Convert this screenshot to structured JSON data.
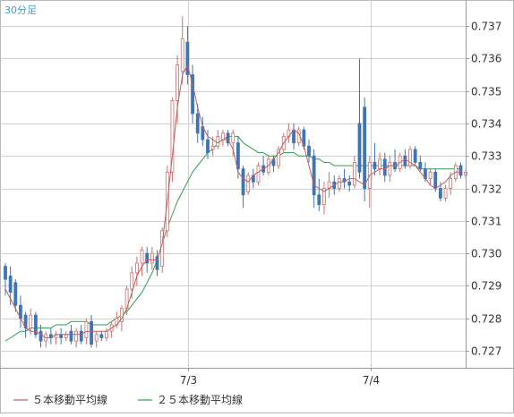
{
  "chart_data": {
    "type": "candlestick",
    "timeframe_label": "30分足",
    "ylim": [
      0.7265,
      0.7375
    ],
    "y_ticks": [
      "0.727",
      "0.728",
      "0.729",
      "0.730",
      "0.731",
      "0.732",
      "0.733",
      "0.734",
      "0.735",
      "0.736",
      "0.737"
    ],
    "x_tick_labels": [
      "7/3",
      "7/4"
    ],
    "grid": true,
    "legend_position": "bottom",
    "colors": {
      "up": "#cc6f6f",
      "down": "#3f74b5",
      "ma5": "#c25d5d",
      "ma25": "#2e9e52",
      "grid": "#cfcfcf",
      "label_blue": "#3aa0d8"
    },
    "legend": [
      {
        "label": "５本移動平均線",
        "color": "#c25d5d"
      },
      {
        "label": "２５本移動平均線",
        "color": "#2e9e52"
      }
    ],
    "candles": [
      {
        "o": 0.7296,
        "h": 0.7297,
        "l": 0.7287,
        "c": 0.7292
      },
      {
        "o": 0.7293,
        "h": 0.7296,
        "l": 0.7284,
        "c": 0.7288
      },
      {
        "o": 0.7291,
        "h": 0.7292,
        "l": 0.7282,
        "c": 0.7284
      },
      {
        "o": 0.7284,
        "h": 0.7287,
        "l": 0.7277,
        "c": 0.728
      },
      {
        "o": 0.7281,
        "h": 0.7282,
        "l": 0.7274,
        "c": 0.7277
      },
      {
        "o": 0.7277,
        "h": 0.7283,
        "l": 0.7275,
        "c": 0.7281
      },
      {
        "o": 0.7281,
        "h": 0.7282,
        "l": 0.7274,
        "c": 0.7275
      },
      {
        "o": 0.7276,
        "h": 0.7278,
        "l": 0.7271,
        "c": 0.7273
      },
      {
        "o": 0.7273,
        "h": 0.7276,
        "l": 0.7271,
        "c": 0.7275
      },
      {
        "o": 0.7275,
        "h": 0.7277,
        "l": 0.7272,
        "c": 0.7274
      },
      {
        "o": 0.7274,
        "h": 0.7276,
        "l": 0.7272,
        "c": 0.7275
      },
      {
        "o": 0.7275,
        "h": 0.7277,
        "l": 0.7272,
        "c": 0.7274
      },
      {
        "o": 0.7274,
        "h": 0.7276,
        "l": 0.7273,
        "c": 0.7275
      },
      {
        "o": 0.7276,
        "h": 0.7278,
        "l": 0.7272,
        "c": 0.7273
      },
      {
        "o": 0.7273,
        "h": 0.7277,
        "l": 0.7271,
        "c": 0.7276
      },
      {
        "o": 0.7276,
        "h": 0.7278,
        "l": 0.7272,
        "c": 0.7273
      },
      {
        "o": 0.7274,
        "h": 0.728,
        "l": 0.7272,
        "c": 0.7279
      },
      {
        "o": 0.7279,
        "h": 0.7281,
        "l": 0.7271,
        "c": 0.7272
      },
      {
        "o": 0.7273,
        "h": 0.7276,
        "l": 0.7271,
        "c": 0.7275
      },
      {
        "o": 0.7275,
        "h": 0.7276,
        "l": 0.7273,
        "c": 0.7274
      },
      {
        "o": 0.7274,
        "h": 0.7277,
        "l": 0.7273,
        "c": 0.7276
      },
      {
        "o": 0.7276,
        "h": 0.7279,
        "l": 0.7274,
        "c": 0.7278
      },
      {
        "o": 0.7278,
        "h": 0.7282,
        "l": 0.7277,
        "c": 0.728
      },
      {
        "o": 0.7279,
        "h": 0.7284,
        "l": 0.7276,
        "c": 0.7283
      },
      {
        "o": 0.7283,
        "h": 0.729,
        "l": 0.7281,
        "c": 0.7289
      },
      {
        "o": 0.7289,
        "h": 0.7296,
        "l": 0.7286,
        "c": 0.7294
      },
      {
        "o": 0.7294,
        "h": 0.7299,
        "l": 0.729,
        "c": 0.7297
      },
      {
        "o": 0.7297,
        "h": 0.7302,
        "l": 0.7293,
        "c": 0.7301
      },
      {
        "o": 0.73,
        "h": 0.7302,
        "l": 0.7294,
        "c": 0.7297
      },
      {
        "o": 0.7297,
        "h": 0.7302,
        "l": 0.7295,
        "c": 0.73
      },
      {
        "o": 0.7299,
        "h": 0.7301,
        "l": 0.7293,
        "c": 0.7295
      },
      {
        "o": 0.7296,
        "h": 0.7308,
        "l": 0.7294,
        "c": 0.7307
      },
      {
        "o": 0.7307,
        "h": 0.7327,
        "l": 0.7305,
        "c": 0.7325
      },
      {
        "o": 0.7325,
        "h": 0.7348,
        "l": 0.7322,
        "c": 0.7347
      },
      {
        "o": 0.7347,
        "h": 0.7361,
        "l": 0.734,
        "c": 0.7358
      },
      {
        "o": 0.7356,
        "h": 0.7373,
        "l": 0.7352,
        "c": 0.7366
      },
      {
        "o": 0.7365,
        "h": 0.737,
        "l": 0.7352,
        "c": 0.7355
      },
      {
        "o": 0.7355,
        "h": 0.7358,
        "l": 0.734,
        "c": 0.7343
      },
      {
        "o": 0.7343,
        "h": 0.7346,
        "l": 0.7334,
        "c": 0.7337
      },
      {
        "o": 0.7339,
        "h": 0.7342,
        "l": 0.7333,
        "c": 0.7335
      },
      {
        "o": 0.7335,
        "h": 0.7338,
        "l": 0.7329,
        "c": 0.7331
      },
      {
        "o": 0.7332,
        "h": 0.7336,
        "l": 0.733,
        "c": 0.7333
      },
      {
        "o": 0.7333,
        "h": 0.7338,
        "l": 0.7332,
        "c": 0.7336
      },
      {
        "o": 0.7335,
        "h": 0.7338,
        "l": 0.7333,
        "c": 0.7337
      },
      {
        "o": 0.7337,
        "h": 0.7338,
        "l": 0.7333,
        "c": 0.7334
      },
      {
        "o": 0.7334,
        "h": 0.7338,
        "l": 0.733,
        "c": 0.7337
      },
      {
        "o": 0.7334,
        "h": 0.7336,
        "l": 0.7323,
        "c": 0.7326
      },
      {
        "o": 0.7326,
        "h": 0.7327,
        "l": 0.7314,
        "c": 0.7318
      },
      {
        "o": 0.7319,
        "h": 0.7325,
        "l": 0.7318,
        "c": 0.7324
      },
      {
        "o": 0.7324,
        "h": 0.7326,
        "l": 0.732,
        "c": 0.7322
      },
      {
        "o": 0.7322,
        "h": 0.7328,
        "l": 0.7321,
        "c": 0.7327
      },
      {
        "o": 0.7327,
        "h": 0.733,
        "l": 0.7324,
        "c": 0.7325
      },
      {
        "o": 0.7325,
        "h": 0.733,
        "l": 0.7324,
        "c": 0.7329
      },
      {
        "o": 0.7329,
        "h": 0.733,
        "l": 0.7325,
        "c": 0.7327
      },
      {
        "o": 0.7327,
        "h": 0.7333,
        "l": 0.7326,
        "c": 0.7332
      },
      {
        "o": 0.7332,
        "h": 0.7337,
        "l": 0.7331,
        "c": 0.7336
      },
      {
        "o": 0.7336,
        "h": 0.734,
        "l": 0.7334,
        "c": 0.7338
      },
      {
        "o": 0.7338,
        "h": 0.734,
        "l": 0.7332,
        "c": 0.7334
      },
      {
        "o": 0.7334,
        "h": 0.7339,
        "l": 0.7333,
        "c": 0.7338
      },
      {
        "o": 0.7338,
        "h": 0.7339,
        "l": 0.7332,
        "c": 0.7333
      },
      {
        "o": 0.7333,
        "h": 0.7335,
        "l": 0.7328,
        "c": 0.733
      },
      {
        "o": 0.733,
        "h": 0.7332,
        "l": 0.7314,
        "c": 0.7318
      },
      {
        "o": 0.7318,
        "h": 0.7323,
        "l": 0.7313,
        "c": 0.7315
      },
      {
        "o": 0.7315,
        "h": 0.7322,
        "l": 0.7312,
        "c": 0.732
      },
      {
        "o": 0.732,
        "h": 0.7325,
        "l": 0.7317,
        "c": 0.7322
      },
      {
        "o": 0.7322,
        "h": 0.7324,
        "l": 0.7318,
        "c": 0.732
      },
      {
        "o": 0.732,
        "h": 0.7324,
        "l": 0.7319,
        "c": 0.7323
      },
      {
        "o": 0.7323,
        "h": 0.7326,
        "l": 0.732,
        "c": 0.7322
      },
      {
        "o": 0.7322,
        "h": 0.7324,
        "l": 0.7319,
        "c": 0.7321
      },
      {
        "o": 0.7321,
        "h": 0.733,
        "l": 0.732,
        "c": 0.7328
      },
      {
        "o": 0.734,
        "h": 0.736,
        "l": 0.7323,
        "c": 0.7325
      },
      {
        "o": 0.7345,
        "h": 0.7348,
        "l": 0.7316,
        "c": 0.732
      },
      {
        "o": 0.732,
        "h": 0.733,
        "l": 0.7314,
        "c": 0.7328
      },
      {
        "o": 0.7328,
        "h": 0.7334,
        "l": 0.7324,
        "c": 0.7326
      },
      {
        "o": 0.7326,
        "h": 0.7331,
        "l": 0.7324,
        "c": 0.7329
      },
      {
        "o": 0.7329,
        "h": 0.7331,
        "l": 0.7322,
        "c": 0.7324
      },
      {
        "o": 0.7324,
        "h": 0.733,
        "l": 0.7322,
        "c": 0.7328
      },
      {
        "o": 0.7328,
        "h": 0.7332,
        "l": 0.7325,
        "c": 0.7326
      },
      {
        "o": 0.7326,
        "h": 0.7331,
        "l": 0.7325,
        "c": 0.733
      },
      {
        "o": 0.733,
        "h": 0.7332,
        "l": 0.7326,
        "c": 0.7327
      },
      {
        "o": 0.7327,
        "h": 0.7333,
        "l": 0.7326,
        "c": 0.7332
      },
      {
        "o": 0.7332,
        "h": 0.7333,
        "l": 0.7327,
        "c": 0.7328
      },
      {
        "o": 0.7328,
        "h": 0.733,
        "l": 0.7325,
        "c": 0.7326
      },
      {
        "o": 0.7326,
        "h": 0.7328,
        "l": 0.7322,
        "c": 0.7323
      },
      {
        "o": 0.7323,
        "h": 0.7326,
        "l": 0.7321,
        "c": 0.7325
      },
      {
        "o": 0.7325,
        "h": 0.7326,
        "l": 0.7319,
        "c": 0.732
      },
      {
        "o": 0.732,
        "h": 0.7322,
        "l": 0.7316,
        "c": 0.7317
      },
      {
        "o": 0.7317,
        "h": 0.7321,
        "l": 0.7316,
        "c": 0.732
      },
      {
        "o": 0.732,
        "h": 0.7325,
        "l": 0.7318,
        "c": 0.7323
      },
      {
        "o": 0.7323,
        "h": 0.7328,
        "l": 0.7322,
        "c": 0.7327
      },
      {
        "o": 0.7327,
        "h": 0.7328,
        "l": 0.7323,
        "c": 0.7324
      },
      {
        "o": 0.7324,
        "h": 0.7326,
        "l": 0.7323,
        "c": 0.7325
      }
    ],
    "ma5": [
      0.7289,
      0.7286,
      0.7283,
      0.728,
      0.7277,
      0.7276,
      0.7276,
      0.7275,
      0.7274,
      0.7274,
      0.7275,
      0.7275,
      0.7275,
      0.7275,
      0.7275,
      0.7275,
      0.7276,
      0.7276,
      0.7276,
      0.7276,
      0.7276,
      0.7277,
      0.7278,
      0.728,
      0.7283,
      0.7288,
      0.7293,
      0.7296,
      0.7298,
      0.7298,
      0.7298,
      0.7303,
      0.7316,
      0.733,
      0.7345,
      0.7355,
      0.7358,
      0.7352,
      0.7345,
      0.7339,
      0.7336,
      0.7335,
      0.7334,
      0.7335,
      0.7335,
      0.7332,
      0.7325,
      0.7323,
      0.7322,
      0.7324,
      0.7325,
      0.7326,
      0.7327,
      0.7329,
      0.7331,
      0.7334,
      0.7336,
      0.7338,
      0.7337,
      0.7333,
      0.7327,
      0.7321,
      0.732,
      0.7319,
      0.732,
      0.7321,
      0.7322,
      0.7322,
      0.7323,
      0.7323,
      0.7322,
      0.7321,
      0.7324,
      0.7325,
      0.7326,
      0.7326,
      0.7327,
      0.7327,
      0.7328,
      0.7329,
      0.7328,
      0.7327,
      0.7325,
      0.7323,
      0.7321,
      0.732,
      0.7321,
      0.7322,
      0.7324,
      0.7325,
      0.7325
    ],
    "ma25": [
      0.7273,
      0.7274,
      0.7275,
      0.7276,
      0.7276,
      0.7277,
      0.7277,
      0.7277,
      0.7277,
      0.7277,
      0.7278,
      0.7278,
      0.7278,
      0.7279,
      0.7279,
      0.7279,
      0.7279,
      0.7278,
      0.7278,
      0.7278,
      0.7278,
      0.7279,
      0.728,
      0.7281,
      0.7282,
      0.7284,
      0.7286,
      0.7288,
      0.7291,
      0.7294,
      0.7298,
      0.7303,
      0.7308,
      0.7312,
      0.7316,
      0.7319,
      0.7322,
      0.7325,
      0.7327,
      0.7329,
      0.7331,
      0.7332,
      0.7334,
      0.7335,
      0.7336,
      0.7336,
      0.7336,
      0.7334,
      0.7333,
      0.7332,
      0.7331,
      0.7331,
      0.733,
      0.733,
      0.733,
      0.7331,
      0.7331,
      0.7331,
      0.733,
      0.733,
      0.733,
      0.7329,
      0.7329,
      0.7328,
      0.7328,
      0.7327,
      0.7327,
      0.7327,
      0.7327,
      0.7327,
      0.7327,
      0.7327,
      0.7327,
      0.7327,
      0.7327,
      0.7327,
      0.7327,
      0.7327,
      0.7327,
      0.7327,
      0.7327,
      0.7327,
      0.7326,
      0.7326,
      0.7326,
      0.7326,
      0.7326,
      0.7326,
      0.7326,
      0.7326,
      0.7326
    ]
  }
}
